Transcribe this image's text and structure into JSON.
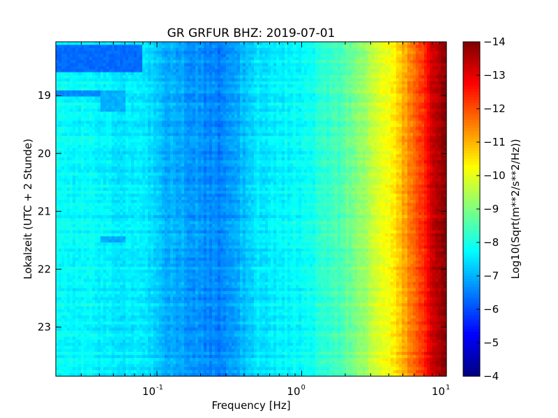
{
  "chart_data": {
    "type": "heatmap",
    "title": "GR GRFUR BHZ: 2019-07-01",
    "xlabel": "Frequency [Hz]",
    "ylabel": "Lokalzeit (UTC + 2 Stunde)",
    "x_scale": "log",
    "xlim": [
      0.02,
      10
    ],
    "x_ticks": [
      {
        "base": "10",
        "exp": "-1",
        "value": 0.1
      },
      {
        "base": "10",
        "exp": "0",
        "value": 1
      },
      {
        "base": "10",
        "exp": "1",
        "value": 10
      }
    ],
    "ylim": [
      18.07,
      23.85
    ],
    "y_inverted": true,
    "y_ticks": [
      "19",
      "20",
      "21",
      "22",
      "23"
    ],
    "colorbar": {
      "label": "Log10(Sqrt(m**2/s**2/Hz))",
      "range": [
        -14,
        -4
      ],
      "ticks": [
        "-4",
        "-5",
        "-6",
        "-7",
        "-8",
        "-9",
        "-10",
        "-11",
        "-12",
        "-13",
        "-14"
      ],
      "colormap": "jet"
    },
    "spectrum_profile": {
      "frequency_hz": [
        0.02,
        0.04,
        0.08,
        0.12,
        0.2,
        0.27,
        0.35,
        0.5,
        0.8,
        1.0,
        1.5,
        2.0,
        3.0,
        4.0,
        5.0,
        6.0,
        7.0,
        8.0,
        9.0,
        10.0
      ],
      "value": [
        -7.8,
        -7.7,
        -7.5,
        -7.0,
        -6.7,
        -6.5,
        -6.9,
        -7.5,
        -7.7,
        -7.8,
        -8.2,
        -8.6,
        -9.5,
        -10.2,
        -11.0,
        -11.7,
        -12.3,
        -13.2,
        -13.7,
        -14.0
      ]
    },
    "features": [
      {
        "hours": [
          18.1,
          18.6
        ],
        "frequency_hz": [
          0.02,
          0.08
        ],
        "value": -6.3
      },
      {
        "hours": [
          18.9,
          19.0
        ],
        "frequency_hz": [
          0.02,
          0.04
        ],
        "value": -6.6
      },
      {
        "hours": [
          18.9,
          19.3
        ],
        "frequency_hz": [
          0.04,
          0.06
        ],
        "value": -7.0
      },
      {
        "hours": [
          21.45,
          21.55
        ],
        "frequency_hz": [
          0.04,
          0.06
        ],
        "value": -6.9
      }
    ]
  }
}
